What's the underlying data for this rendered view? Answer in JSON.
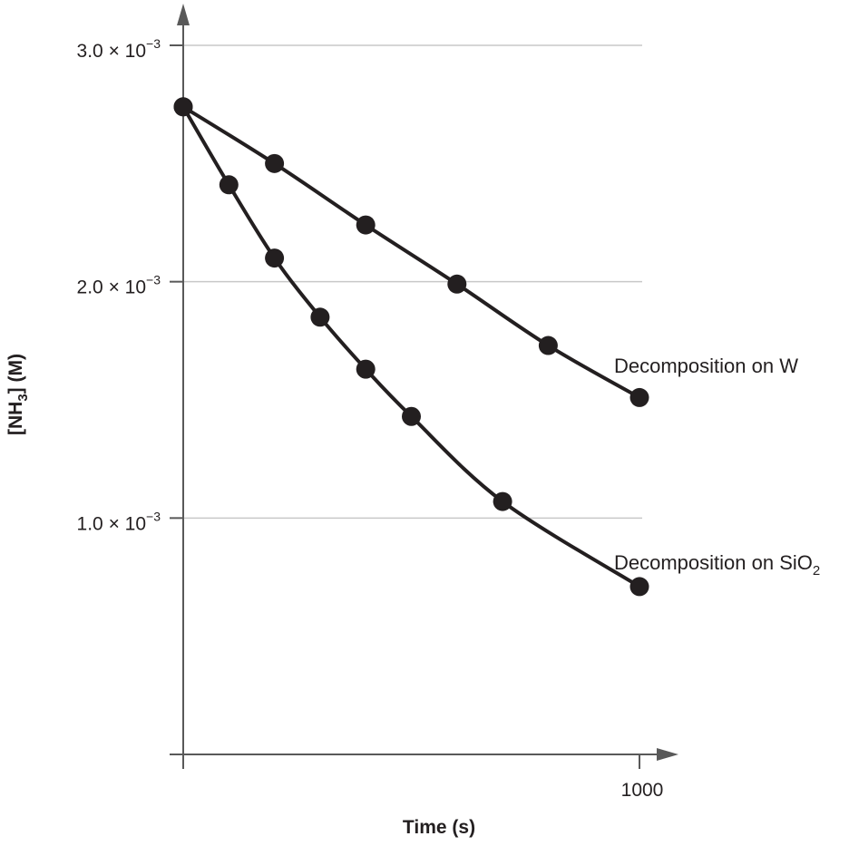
{
  "colors": {
    "gridline": "#c8c8c8",
    "axis": "#595959",
    "series": "#231f20",
    "background": "#ffffff"
  },
  "chart_data": {
    "type": "line",
    "title": "",
    "xlabel": "Time (s)",
    "ylabel": {
      "main": "[NH",
      "sub": "3",
      "tail": "] (M)"
    },
    "xlim": [
      0,
      1000
    ],
    "ylim": [
      0,
      0.003
    ],
    "grid": "horizontal",
    "x_ticks": [
      {
        "value": 1000,
        "label": "1000"
      }
    ],
    "y_ticks": [
      {
        "value": 0.001,
        "mant": "1.0",
        "times": " × 10",
        "exp": "−3"
      },
      {
        "value": 0.002,
        "mant": "2.0",
        "times": " × 10",
        "exp": "−3"
      },
      {
        "value": 0.003,
        "mant": "3.0",
        "times": " × 10",
        "exp": "−3"
      }
    ],
    "series": [
      {
        "name": "Decomposition on W",
        "label": {
          "main": "Decomposition on W",
          "sub": ""
        },
        "x": [
          0,
          200,
          400,
          600,
          800,
          1000
        ],
        "y": [
          0.00274,
          0.0025,
          0.00224,
          0.00199,
          0.00173,
          0.00151
        ]
      },
      {
        "name": "Decomposition on SiO2",
        "label": {
          "main": "Decomposition on SiO",
          "sub": "2"
        },
        "x": [
          0,
          100,
          200,
          300,
          400,
          500,
          700,
          1000
        ],
        "y": [
          0.00274,
          0.00241,
          0.0021,
          0.00185,
          0.00163,
          0.00143,
          0.00107,
          0.00071
        ]
      }
    ]
  }
}
